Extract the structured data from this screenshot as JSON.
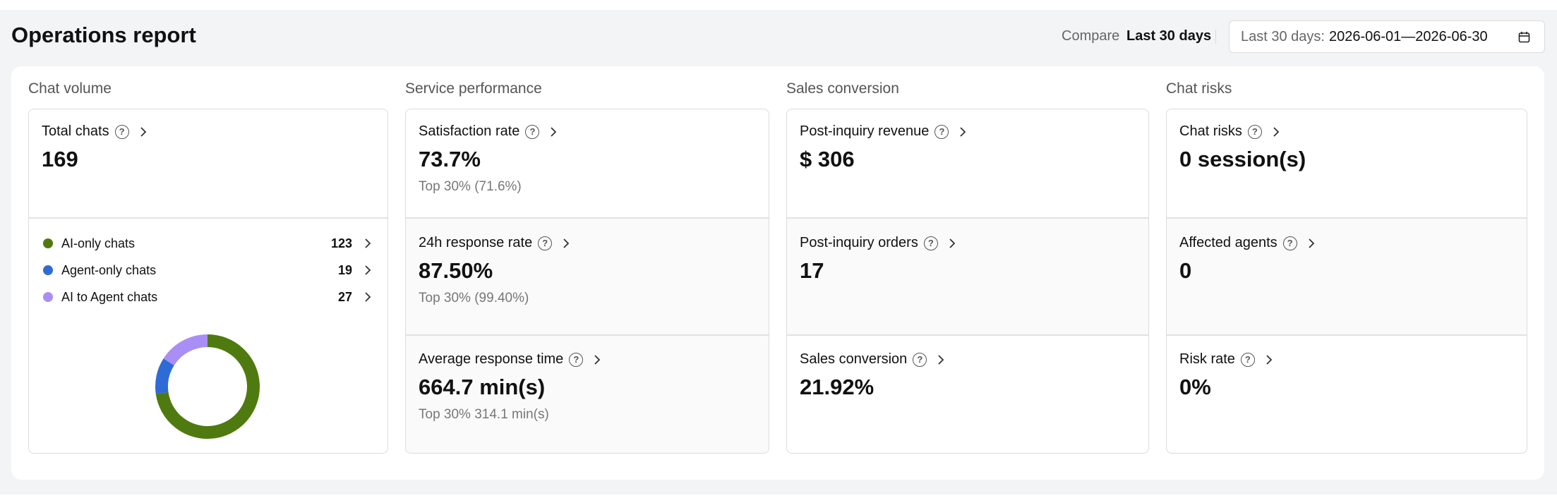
{
  "header": {
    "title": "Operations report",
    "compare_label": "Compare",
    "compare_value": "Last 30 days",
    "date_label": "Last 30 days:",
    "date_range": "2026-06-01—2026-06-30"
  },
  "sections": {
    "chat_volume": {
      "title": "Chat volume",
      "total_label": "Total chats",
      "total_value": "169",
      "breakdown": [
        {
          "label": "AI-only chats",
          "value": 123,
          "color": "#4f7a0f"
        },
        {
          "label": "Agent-only chats",
          "value": 19,
          "color": "#2e6bd6"
        },
        {
          "label": "AI to Agent chats",
          "value": 27,
          "color": "#a98ef5"
        }
      ]
    },
    "service_performance": {
      "title": "Service performance",
      "metrics": [
        {
          "label": "Satisfaction rate",
          "value": "73.7%",
          "sub_label": "Top 30%",
          "sub_value": "(71.6%)"
        },
        {
          "label": "24h response rate",
          "value": "87.50%",
          "sub_label": "Top 30%",
          "sub_value": "(99.40%)"
        },
        {
          "label": "Average response time",
          "value": "664.7 min(s)",
          "sub_label": "Top 30%",
          "sub_value": "314.1 min(s)"
        }
      ]
    },
    "sales_conversion": {
      "title": "Sales conversion",
      "metrics": [
        {
          "label": "Post-inquiry revenue",
          "value": "$ 306"
        },
        {
          "label": "Post-inquiry orders",
          "value": "17"
        },
        {
          "label": "Sales conversion",
          "value": "21.92%"
        }
      ]
    },
    "chat_risks": {
      "title": "Chat risks",
      "metrics": [
        {
          "label": "Chat risks",
          "value": "0 session(s)"
        },
        {
          "label": "Affected agents",
          "value": "0"
        },
        {
          "label": "Risk rate",
          "value": "0%"
        }
      ]
    }
  },
  "icons": {
    "help": "?",
    "chevron": "chevron-right-icon",
    "calendar": "calendar-icon"
  }
}
